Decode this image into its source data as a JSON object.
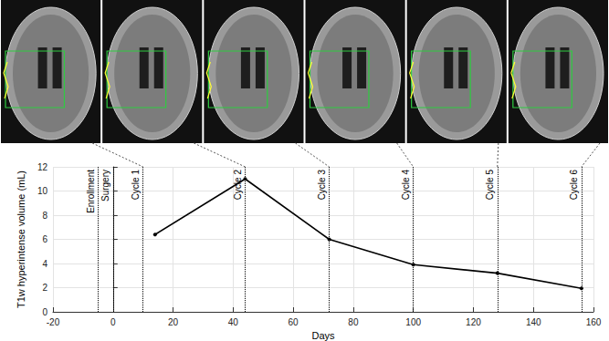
{
  "chart_data": {
    "type": "line",
    "x": [
      14,
      44,
      72,
      100,
      128,
      156
    ],
    "values": [
      6.4,
      11.0,
      6.0,
      3.9,
      3.2,
      1.95
    ],
    "color": "#000000",
    "marker": "circle",
    "line_style": "solid",
    "x_label": "Days",
    "y_label": "T1w hyperintense volume (mL)",
    "xlim": [
      -20,
      160
    ],
    "xticks": [
      -20,
      0,
      20,
      40,
      60,
      80,
      100,
      120,
      140,
      160
    ],
    "ylim": [
      0,
      12
    ],
    "yticks": [
      0,
      2,
      4,
      6,
      8,
      10,
      12
    ],
    "grid": true,
    "annotations": [
      {
        "x": -5,
        "label": "Enrollment"
      },
      {
        "x": 0,
        "label": "Surgery"
      },
      {
        "x": 10,
        "label": "Cycle 1"
      },
      {
        "x": 44,
        "label": "Cycle 2"
      },
      {
        "x": 72,
        "label": "Cycle 3"
      },
      {
        "x": 100,
        "label": "Cycle 4"
      },
      {
        "x": 128,
        "label": "Cycle 5"
      },
      {
        "x": 156,
        "label": "Cycle 6"
      }
    ]
  }
}
